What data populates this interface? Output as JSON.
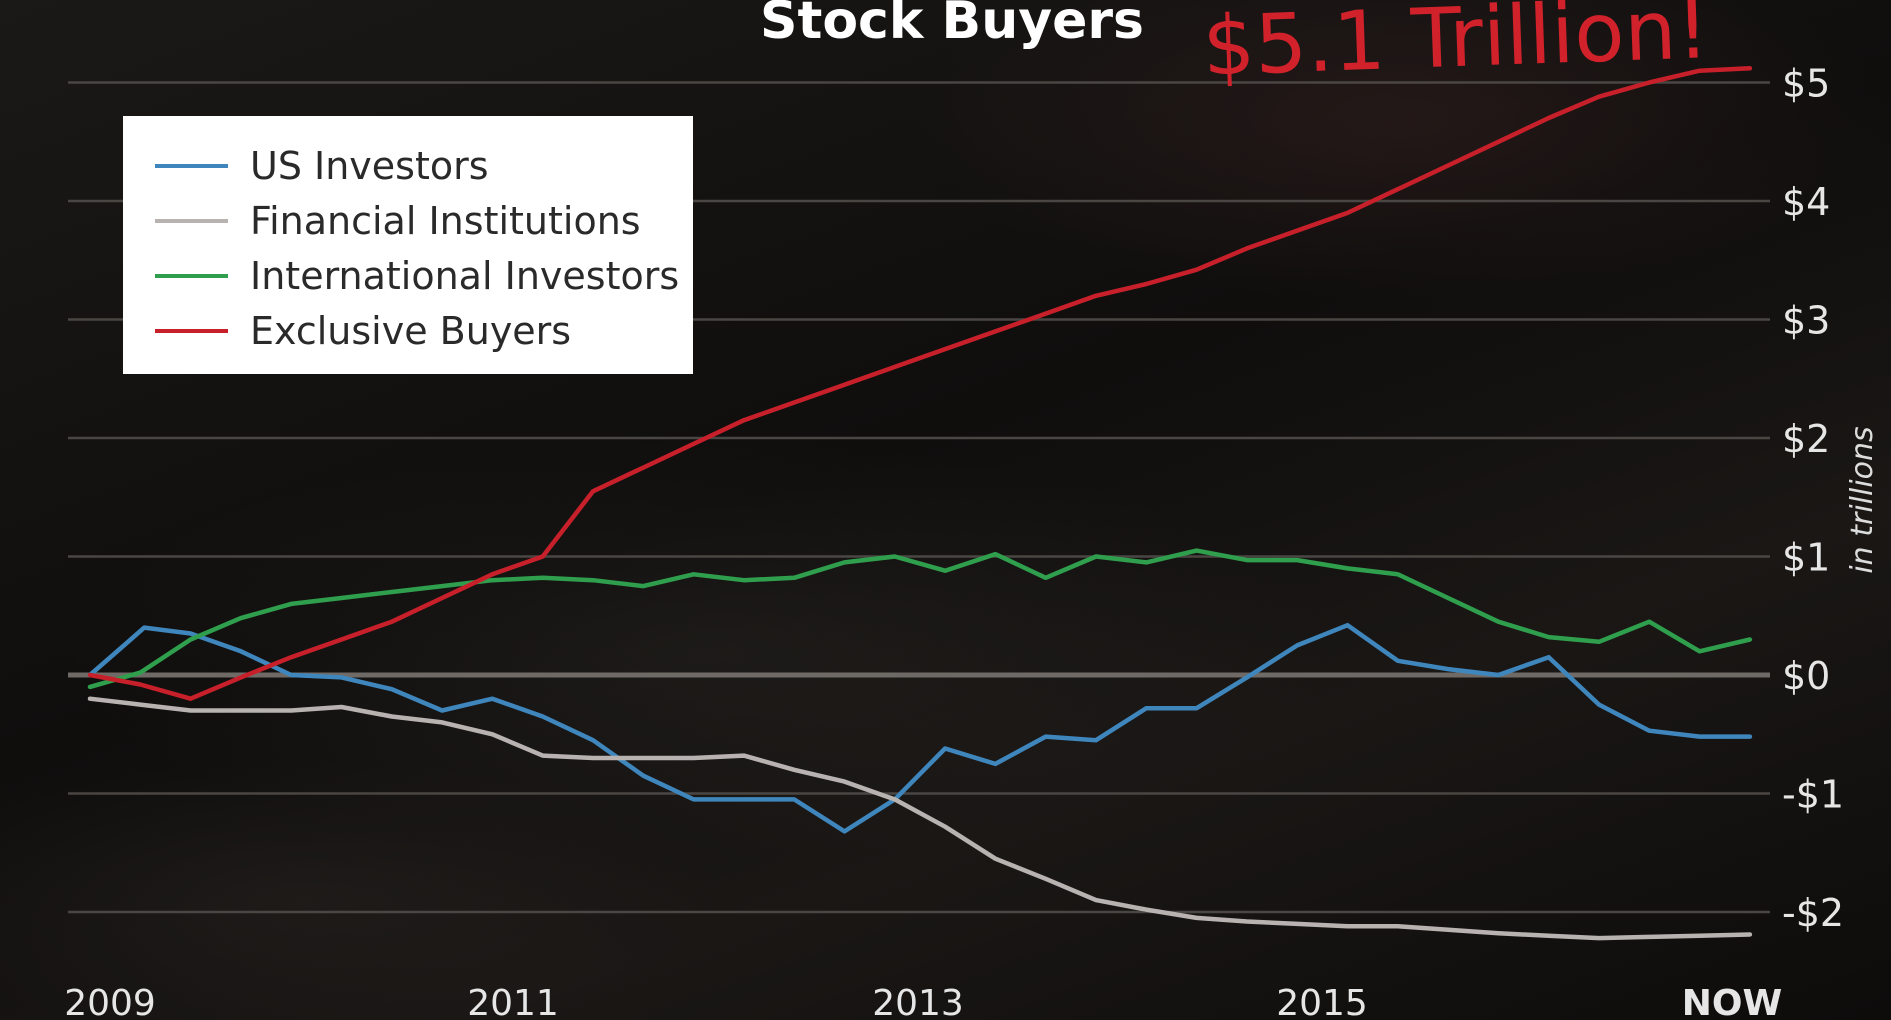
{
  "header": {
    "title": "Stock Buyers",
    "callout": "$5.1 Trillion!"
  },
  "colors": {
    "US Investors": "#3f86bd",
    "Financial Institutions": "#b8b3b0",
    "International Investors": "#2f9e4d",
    "Exclusive Buyers": "#c8202b"
  },
  "chart_data": {
    "type": "line",
    "title": "Stock Buyers",
    "annotation": "$5.1 Trillion!",
    "ylabel": "in trillions",
    "xlabel": "",
    "x_tick_labels": [
      "2009",
      "2011",
      "2013",
      "2015",
      "NOW"
    ],
    "y_tick_labels": [
      "$5",
      "$4",
      "$3",
      "$2",
      "$1",
      "$0",
      "-$1",
      "-$2"
    ],
    "y_ticks": [
      5,
      4,
      3,
      2,
      1,
      0,
      -1,
      -2
    ],
    "ylim": [
      -2.3,
      5.3
    ],
    "xlim": [
      2009.0,
      2017.3
    ],
    "grid": true,
    "legend_position": "top-left",
    "series": [
      {
        "name": "US Investors",
        "x": [
          2009.0,
          2009.27,
          2009.5,
          2009.75,
          2010.0,
          2010.25,
          2010.5,
          2010.75,
          2011.0,
          2011.25,
          2011.5,
          2011.75,
          2012.0,
          2012.25,
          2012.5,
          2012.75,
          2013.0,
          2013.25,
          2013.5,
          2013.75,
          2014.0,
          2014.25,
          2014.5,
          2014.75,
          2015.0,
          2015.25,
          2015.5,
          2015.75,
          2016.0,
          2016.25,
          2016.5,
          2016.75,
          2017.0,
          2017.25
        ],
        "values": [
          0.0,
          0.4,
          0.35,
          0.2,
          0.0,
          -0.02,
          -0.12,
          -0.3,
          -0.2,
          -0.35,
          -0.55,
          -0.85,
          -1.05,
          -1.05,
          -1.05,
          -1.32,
          -1.05,
          -0.62,
          -0.75,
          -0.52,
          -0.55,
          -0.28,
          -0.28,
          -0.02,
          0.25,
          0.42,
          0.12,
          0.05,
          0.0,
          0.15,
          -0.25,
          -0.47,
          -0.52,
          -0.52
        ]
      },
      {
        "name": "Financial Institutions",
        "x": [
          2009.0,
          2009.25,
          2009.5,
          2009.75,
          2010.0,
          2010.25,
          2010.5,
          2010.75,
          2011.0,
          2011.25,
          2011.5,
          2011.75,
          2012.0,
          2012.25,
          2012.5,
          2012.75,
          2013.0,
          2013.25,
          2013.5,
          2013.75,
          2014.0,
          2014.25,
          2014.5,
          2014.75,
          2015.0,
          2015.25,
          2015.5,
          2015.75,
          2016.0,
          2016.25,
          2016.5,
          2016.75,
          2017.0,
          2017.25
        ],
        "values": [
          -0.2,
          -0.25,
          -0.3,
          -0.3,
          -0.3,
          -0.27,
          -0.35,
          -0.4,
          -0.5,
          -0.68,
          -0.7,
          -0.7,
          -0.7,
          -0.68,
          -0.8,
          -0.9,
          -1.05,
          -1.28,
          -1.55,
          -1.72,
          -1.9,
          -1.98,
          -2.05,
          -2.08,
          -2.1,
          -2.12,
          -2.12,
          -2.15,
          -2.18,
          -2.2,
          -2.22,
          -2.21,
          -2.2,
          -2.19
        ]
      },
      {
        "name": "International Investors",
        "x": [
          2009.0,
          2009.25,
          2009.5,
          2009.75,
          2010.0,
          2010.25,
          2010.5,
          2010.75,
          2011.0,
          2011.25,
          2011.5,
          2011.75,
          2012.0,
          2012.25,
          2012.5,
          2012.75,
          2013.0,
          2013.25,
          2013.5,
          2013.75,
          2014.0,
          2014.25,
          2014.5,
          2014.75,
          2015.0,
          2015.25,
          2015.5,
          2015.75,
          2016.0,
          2016.25,
          2016.5,
          2016.75,
          2017.0,
          2017.25
        ],
        "values": [
          -0.1,
          0.02,
          0.3,
          0.48,
          0.6,
          0.65,
          0.7,
          0.75,
          0.8,
          0.82,
          0.8,
          0.75,
          0.85,
          0.8,
          0.82,
          0.95,
          1.0,
          0.88,
          1.02,
          0.82,
          1.0,
          0.95,
          1.05,
          0.97,
          0.97,
          0.9,
          0.85,
          0.65,
          0.45,
          0.32,
          0.28,
          0.45,
          0.2,
          0.3
        ]
      },
      {
        "name": "Exclusive Buyers",
        "x": [
          2009.0,
          2009.25,
          2009.5,
          2009.75,
          2010.0,
          2010.25,
          2010.5,
          2010.75,
          2011.0,
          2011.25,
          2011.5,
          2011.75,
          2012.0,
          2012.25,
          2012.5,
          2012.75,
          2013.0,
          2013.25,
          2013.5,
          2013.75,
          2014.0,
          2014.25,
          2014.5,
          2014.75,
          2015.0,
          2015.25,
          2015.5,
          2015.75,
          2016.0,
          2016.25,
          2016.5,
          2016.75,
          2017.0,
          2017.25
        ],
        "values": [
          0.0,
          -0.08,
          -0.2,
          -0.02,
          0.15,
          0.3,
          0.45,
          0.65,
          0.85,
          1.0,
          1.55,
          1.75,
          1.95,
          2.15,
          2.3,
          2.45,
          2.6,
          2.75,
          2.9,
          3.05,
          3.2,
          3.3,
          3.42,
          3.6,
          3.75,
          3.9,
          4.1,
          4.3,
          4.5,
          4.7,
          4.88,
          5.0,
          5.1,
          5.12
        ]
      }
    ]
  }
}
